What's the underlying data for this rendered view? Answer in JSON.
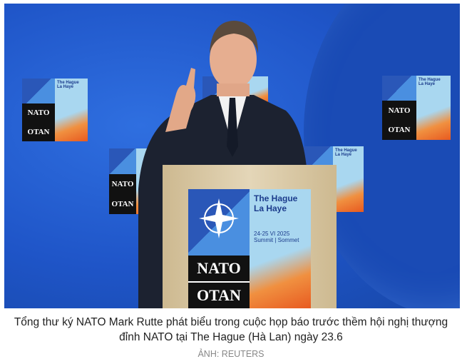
{
  "photo": {
    "alt_subject": "NATO press conference",
    "sign": {
      "city_en": "The Hague",
      "city_fr": "La Haye",
      "dates": "24-25 VI 2025",
      "event": "Summit | Sommet",
      "name_en": "NATO",
      "name_fr": "OTAN"
    },
    "colors": {
      "backdrop": "#1f55c8",
      "podium": "#d9c9a8",
      "suit": "#1c2230"
    }
  },
  "caption": {
    "text": "Tổng thư ký NATO Mark Rutte phát biểu trong cuộc họp báo trước thềm hội nghị thượng đỉnh NATO tại The Hague (Hà Lan) ngày 23.6",
    "credit": "ẢNH: REUTERS"
  }
}
